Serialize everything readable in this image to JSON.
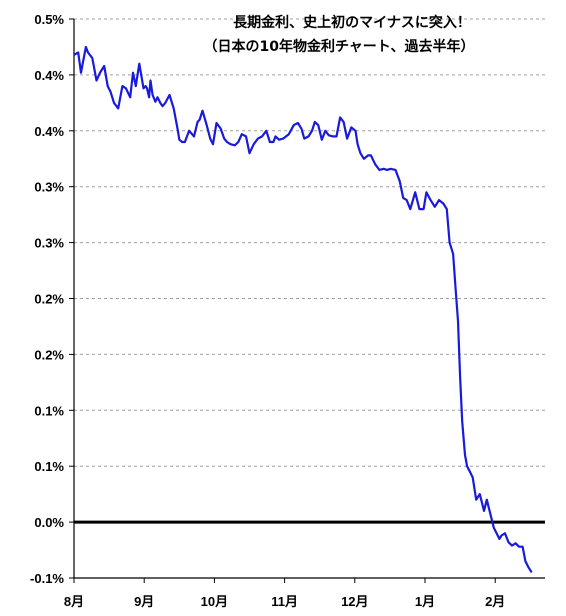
{
  "chart_data": {
    "type": "line",
    "title": "長期金利、史上初のマイナスに突入！",
    "subtitle": "（日本の10年物金利チャート、過去半年）",
    "xlabel": "",
    "ylabel": "",
    "y_tick_labels": [
      "0.5%",
      "0.4%",
      "0.4%",
      "0.3%",
      "0.3%",
      "0.2%",
      "0.2%",
      "0.1%",
      "0.1%",
      "0.0%",
      "-0.1%"
    ],
    "x_tick_labels": [
      "8月",
      "9月",
      "10月",
      "11月",
      "12月",
      "1月",
      "2月"
    ],
    "ylim": [
      -0.05,
      0.45
    ],
    "xlim": [
      0,
      6.64
    ],
    "grid": "horizontal dashed",
    "legend": "none",
    "line_color": "#1a1adc",
    "zero_line_color": "#000000",
    "series": [
      {
        "x": [
          0.0,
          0.06,
          0.1,
          0.13,
          0.17,
          0.2,
          0.26,
          0.32,
          0.37,
          0.43,
          0.48,
          0.52,
          0.57,
          0.63,
          0.69,
          0.74,
          0.8,
          0.84,
          0.88,
          0.93,
          0.99,
          1.02,
          1.04,
          1.07,
          1.09,
          1.12,
          1.16,
          1.19,
          1.23,
          1.26,
          1.3,
          1.36,
          1.42,
          1.48,
          1.5,
          1.54,
          1.58,
          1.64,
          1.71,
          1.76,
          1.79,
          1.83,
          1.89,
          1.94,
          1.98,
          2.03,
          2.09,
          2.14,
          2.18,
          2.23,
          2.29,
          2.34,
          2.39,
          2.45,
          2.5,
          2.56,
          2.62,
          2.68,
          2.74,
          2.79,
          2.84,
          2.87,
          2.92,
          2.98,
          3.06,
          3.13,
          3.19,
          3.24,
          3.28,
          3.34,
          3.39,
          3.43,
          3.48,
          3.53,
          3.58,
          3.63,
          3.69,
          3.74,
          3.79,
          3.84,
          3.89,
          3.95,
          4.01,
          4.04,
          4.08,
          4.13,
          4.19,
          4.23,
          4.29,
          4.35,
          4.41,
          4.46,
          4.51,
          4.58,
          4.64,
          4.69,
          4.74,
          4.79,
          4.86,
          4.92,
          4.98,
          5.02,
          5.08,
          5.14,
          5.2,
          5.26,
          5.31,
          5.35,
          5.4,
          5.44,
          5.47,
          5.5,
          5.53,
          5.57,
          5.6,
          5.64,
          5.68,
          5.73,
          5.78,
          5.84,
          5.88,
          5.94,
          5.98,
          6.02,
          6.06,
          6.09,
          6.14,
          6.19,
          6.24,
          6.29,
          6.34,
          6.39,
          6.43,
          6.47,
          6.52
        ],
        "y": [
          0.418,
          0.42,
          0.402,
          0.412,
          0.425,
          0.42,
          0.415,
          0.395,
          0.402,
          0.408,
          0.39,
          0.385,
          0.375,
          0.37,
          0.39,
          0.388,
          0.38,
          0.402,
          0.39,
          0.41,
          0.388,
          0.39,
          0.388,
          0.38,
          0.395,
          0.382,
          0.376,
          0.38,
          0.375,
          0.372,
          0.375,
          0.382,
          0.37,
          0.35,
          0.342,
          0.34,
          0.34,
          0.35,
          0.345,
          0.358,
          0.36,
          0.368,
          0.355,
          0.343,
          0.338,
          0.357,
          0.352,
          0.343,
          0.34,
          0.338,
          0.337,
          0.34,
          0.347,
          0.345,
          0.33,
          0.338,
          0.343,
          0.345,
          0.35,
          0.34,
          0.34,
          0.345,
          0.342,
          0.343,
          0.347,
          0.355,
          0.357,
          0.352,
          0.343,
          0.345,
          0.35,
          0.358,
          0.355,
          0.342,
          0.35,
          0.346,
          0.345,
          0.345,
          0.362,
          0.358,
          0.343,
          0.353,
          0.35,
          0.338,
          0.33,
          0.325,
          0.328,
          0.328,
          0.32,
          0.315,
          0.316,
          0.315,
          0.316,
          0.315,
          0.305,
          0.29,
          0.288,
          0.28,
          0.295,
          0.28,
          0.28,
          0.295,
          0.288,
          0.282,
          0.288,
          0.285,
          0.28,
          0.25,
          0.24,
          0.205,
          0.18,
          0.13,
          0.09,
          0.06,
          0.05,
          0.045,
          0.04,
          0.02,
          0.025,
          0.01,
          0.02,
          0.005,
          -0.005,
          -0.01,
          -0.015,
          -0.012,
          -0.01,
          -0.018,
          -0.021,
          -0.019,
          -0.022,
          -0.022,
          -0.035,
          -0.04,
          -0.045
        ]
      }
    ]
  }
}
